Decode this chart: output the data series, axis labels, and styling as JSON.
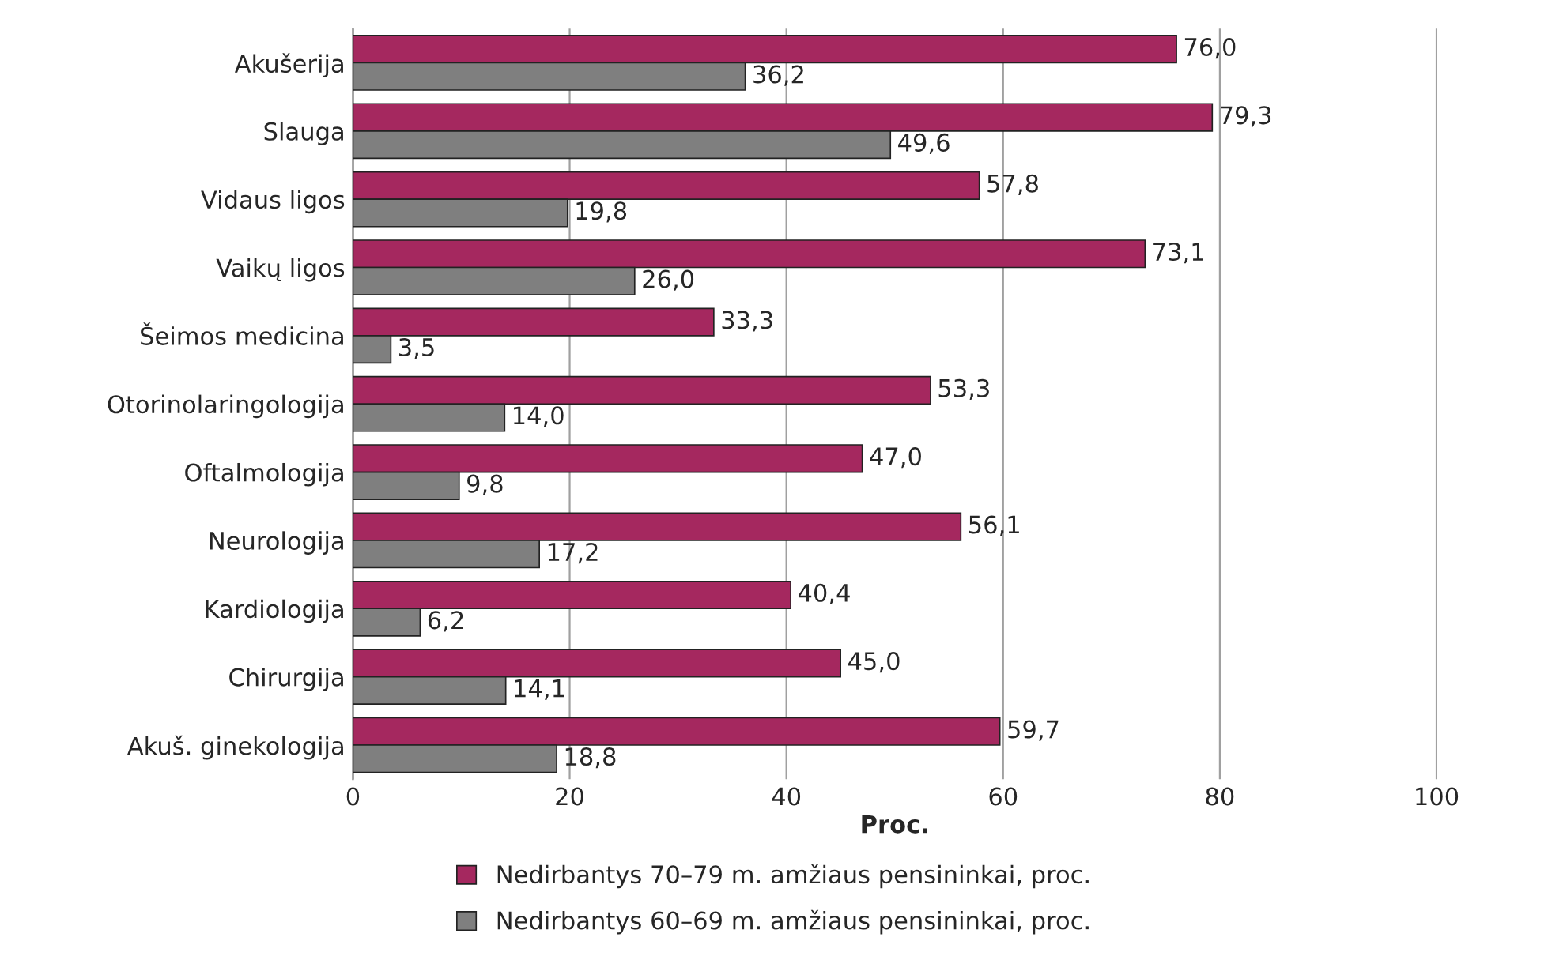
{
  "chart_data": {
    "type": "bar",
    "orientation": "horizontal",
    "xlabel": "Proc.",
    "categories": [
      "Akušerija",
      "Slauga",
      "Vidaus ligos",
      "Vaikų ligos",
      "Šeimos medicina",
      "Otorinolaringologija",
      "Oftalmologija",
      "Neurologija",
      "Kardiologija",
      "Chirurgija",
      "Akuš. ginekologija"
    ],
    "series": [
      {
        "name": "Nedirbantys 70–79 m. amžiaus pensininkai, proc.",
        "color": "#a5285f",
        "values": [
          76.0,
          79.3,
          57.8,
          73.1,
          33.3,
          53.3,
          47.0,
          56.1,
          40.4,
          45.0,
          59.7
        ],
        "value_labels": [
          "76,0",
          "79,3",
          "57,8",
          "73,1",
          "33,3",
          "53,3",
          "47,0",
          "56,1",
          "40,4",
          "45,0",
          "59,7"
        ]
      },
      {
        "name": "Nedirbantys 60–69 m. amžiaus pensininkai, proc.",
        "color": "#7f7f7f",
        "values": [
          36.2,
          49.6,
          19.8,
          26.0,
          3.5,
          14.0,
          9.8,
          17.2,
          6.2,
          14.1,
          18.8
        ],
        "value_labels": [
          "36,2",
          "49,6",
          "19,8",
          "26,0",
          "3,5",
          "14,0",
          "9,8",
          "17,2",
          "6,2",
          "14,1",
          "18,8"
        ]
      }
    ],
    "xlim": [
      0,
      100
    ],
    "xticks": [
      0,
      20,
      40,
      60,
      80,
      100
    ],
    "grid": "x",
    "legend": "bottom"
  }
}
